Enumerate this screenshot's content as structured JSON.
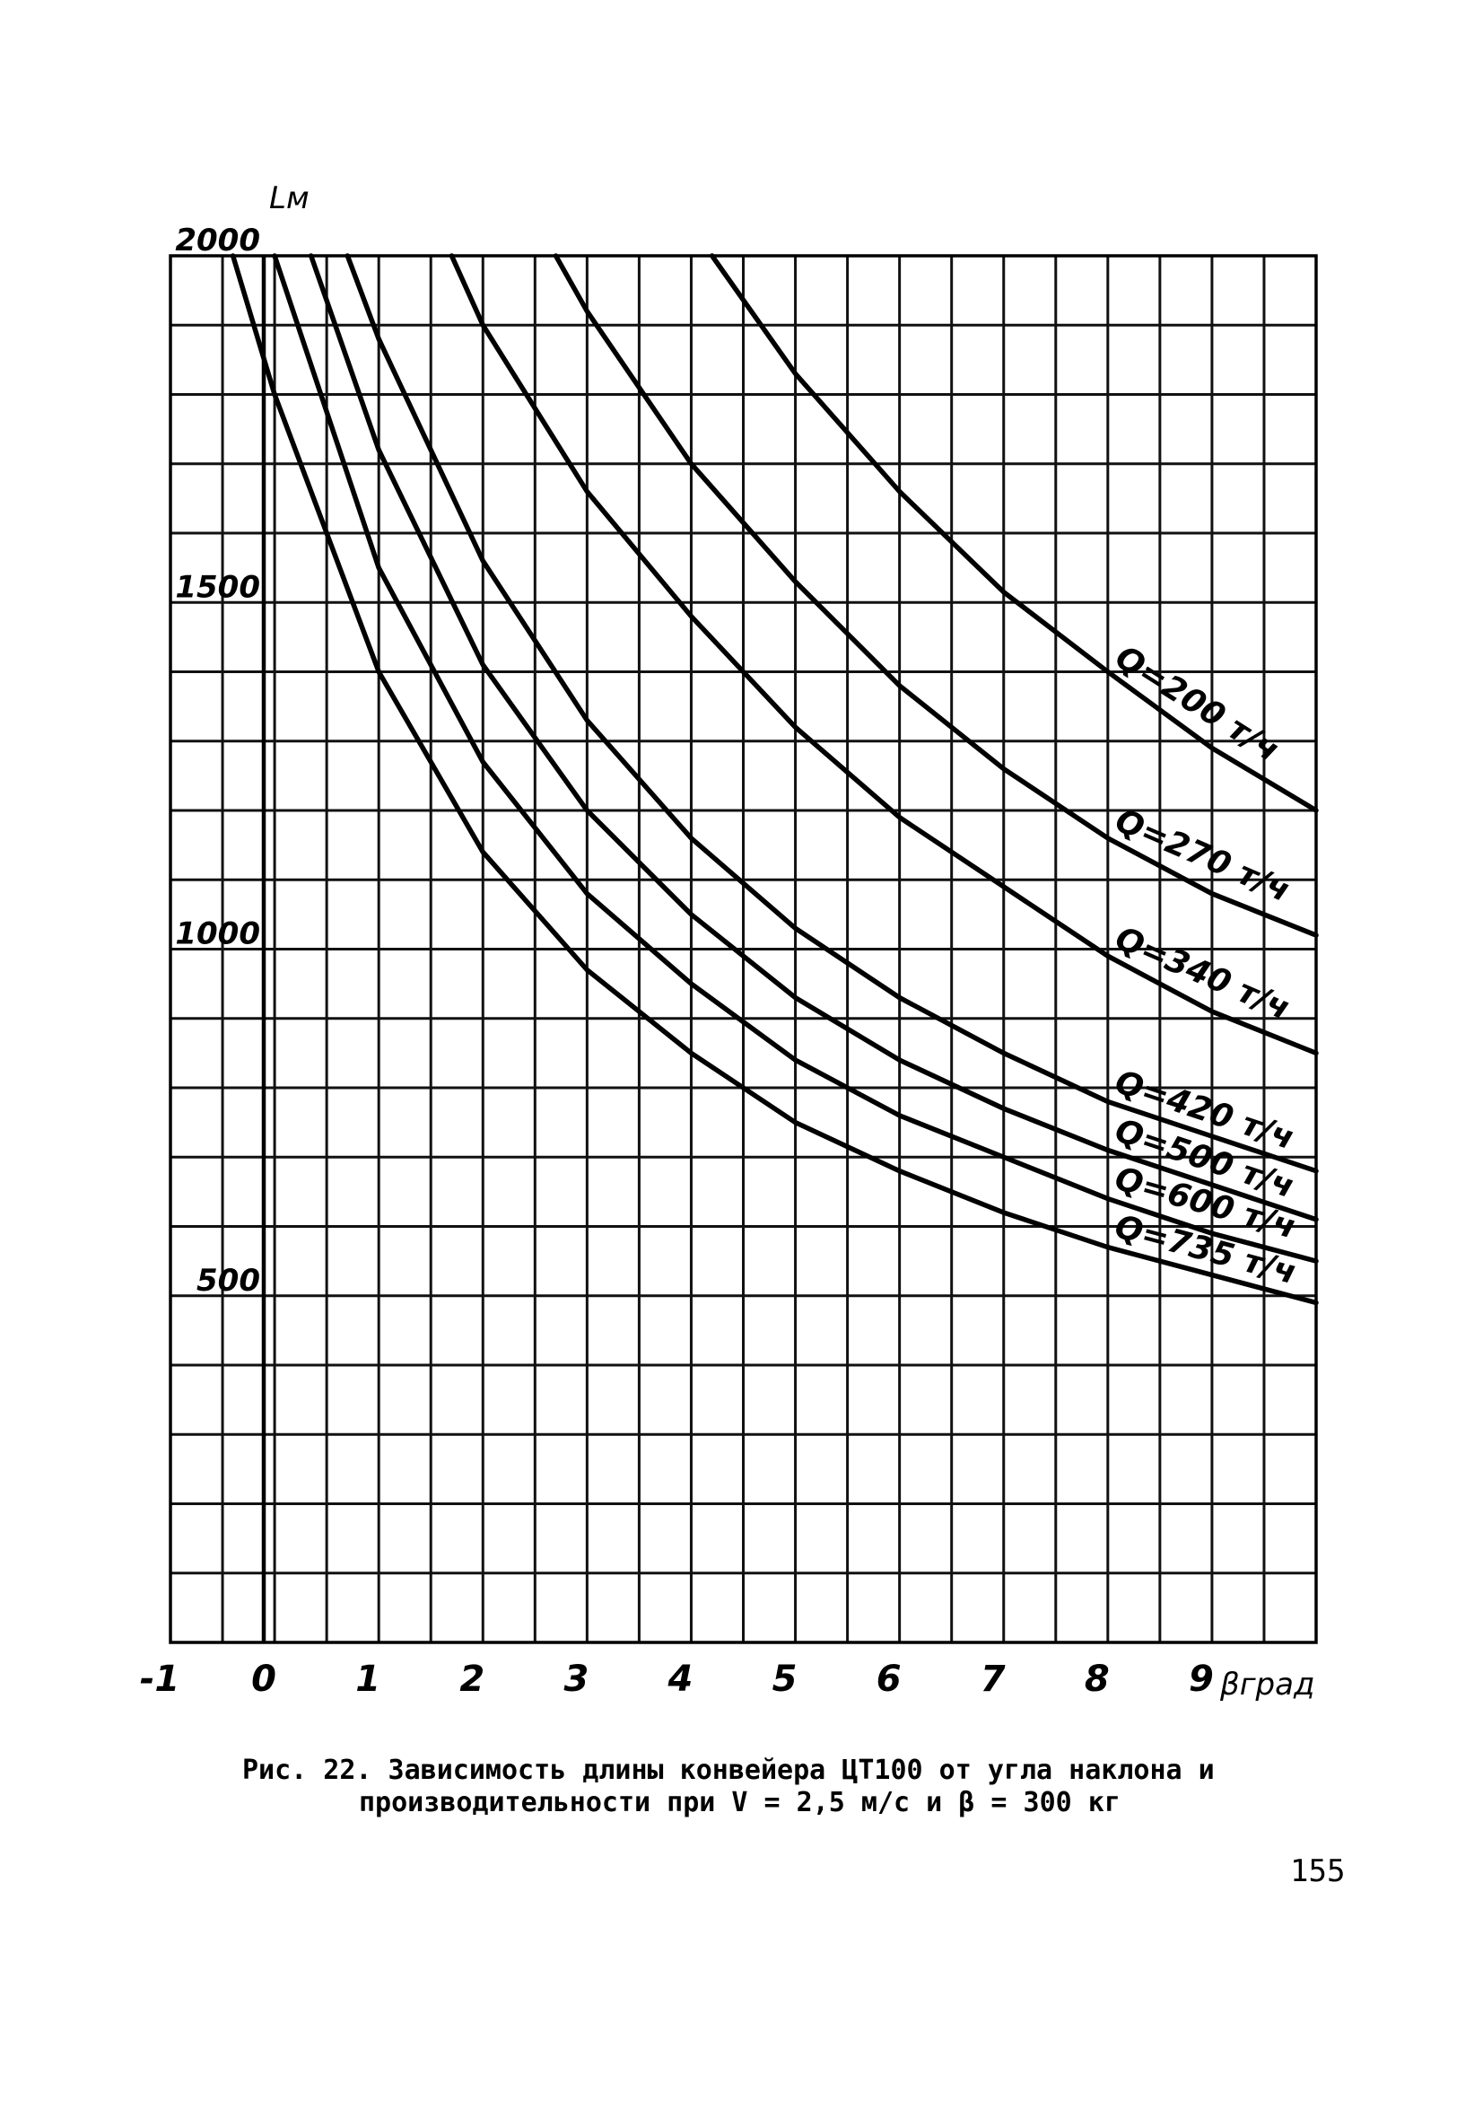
{
  "chart_data": {
    "type": "line",
    "title": "",
    "xlabel": "βград",
    "ylabel": "Lм",
    "xlim": [
      -1,
      10
    ],
    "ylim": [
      0,
      2000
    ],
    "x_ticks": [
      "-1",
      "0",
      "1",
      "2",
      "3",
      "4",
      "5",
      "6",
      "7",
      "8",
      "9"
    ],
    "y_ticks": [
      {
        "value": 500,
        "label": "500"
      },
      {
        "value": 1000,
        "label": "1000"
      },
      {
        "value": 1500,
        "label": "1500"
      },
      {
        "value": 2000,
        "label": "2000"
      }
    ],
    "grid": true,
    "series": [
      {
        "name": "Q=200 т/ч",
        "points": [
          [
            4.2,
            2000
          ],
          [
            5,
            1830
          ],
          [
            6,
            1660
          ],
          [
            7,
            1515
          ],
          [
            8,
            1400
          ],
          [
            9,
            1290
          ],
          [
            10,
            1200
          ]
        ]
      },
      {
        "name": "Q=270 т/ч",
        "points": [
          [
            2.7,
            2000
          ],
          [
            3,
            1920
          ],
          [
            4,
            1700
          ],
          [
            5,
            1530
          ],
          [
            6,
            1380
          ],
          [
            7,
            1260
          ],
          [
            8,
            1160
          ],
          [
            9,
            1080
          ],
          [
            10,
            1020
          ]
        ]
      },
      {
        "name": "Q=340 т/ч",
        "points": [
          [
            1.7,
            2000
          ],
          [
            2,
            1900
          ],
          [
            3,
            1660
          ],
          [
            4,
            1480
          ],
          [
            5,
            1320
          ],
          [
            6,
            1190
          ],
          [
            7,
            1090
          ],
          [
            8,
            990
          ],
          [
            9,
            910
          ],
          [
            10,
            850
          ]
        ]
      },
      {
        "name": "Q=420 т/ч",
        "points": [
          [
            0.7,
            2000
          ],
          [
            1,
            1880
          ],
          [
            2,
            1560
          ],
          [
            3,
            1330
          ],
          [
            4,
            1160
          ],
          [
            5,
            1030
          ],
          [
            6,
            930
          ],
          [
            7,
            850
          ],
          [
            8,
            780
          ],
          [
            9,
            730
          ],
          [
            10,
            680
          ]
        ]
      },
      {
        "name": "Q=500 т/ч",
        "points": [
          [
            0.35,
            2000
          ],
          [
            1,
            1720
          ],
          [
            2,
            1410
          ],
          [
            3,
            1200
          ],
          [
            4,
            1050
          ],
          [
            5,
            930
          ],
          [
            6,
            840
          ],
          [
            7,
            770
          ],
          [
            8,
            710
          ],
          [
            9,
            660
          ],
          [
            10,
            610
          ]
        ]
      },
      {
        "name": "Q=600 т/ч",
        "points": [
          [
            0,
            2000
          ],
          [
            1,
            1550
          ],
          [
            2,
            1270
          ],
          [
            3,
            1080
          ],
          [
            4,
            950
          ],
          [
            5,
            840
          ],
          [
            6,
            760
          ],
          [
            7,
            700
          ],
          [
            8,
            640
          ],
          [
            9,
            590
          ],
          [
            10,
            550
          ]
        ]
      },
      {
        "name": "Q=735 т/ч",
        "points": [
          [
            -0.4,
            2000
          ],
          [
            0,
            1800
          ],
          [
            1,
            1400
          ],
          [
            2,
            1140
          ],
          [
            3,
            970
          ],
          [
            4,
            850
          ],
          [
            5,
            750
          ],
          [
            6,
            680
          ],
          [
            7,
            620
          ],
          [
            8,
            570
          ],
          [
            9,
            530
          ],
          [
            10,
            490
          ]
        ]
      }
    ]
  },
  "caption": {
    "line1": "Рис. 22. Зависимость длины конвейера ЦТ100 от угла наклона и",
    "line2": "производительности при V = 2,5 м/с и β = 300 кг"
  },
  "page_number": "155"
}
